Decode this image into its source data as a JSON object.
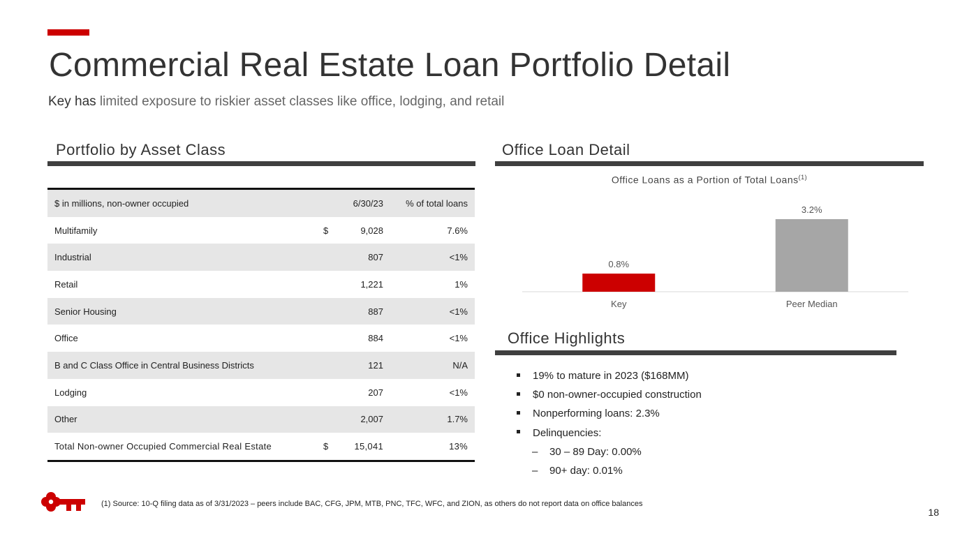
{
  "header": {
    "title": "Commercial Real Estate Loan Portfolio Detail",
    "subtitle_lead": "Key has",
    "subtitle_rest": " limited exposure to riskier asset classes like office, lodging, and retail",
    "accent_color": "#cc0000"
  },
  "portfolio": {
    "heading": "Portfolio by Asset Class",
    "columns": [
      "$ in millions, non-owner occupied",
      "6/30/23",
      "% of total loans"
    ],
    "rows": [
      {
        "label": "Multifamily",
        "dollar": "$",
        "value": "9,028",
        "pct": "7.6%"
      },
      {
        "label": "Industrial",
        "dollar": "",
        "value": "807",
        "pct": "<1%"
      },
      {
        "label": "Retail",
        "dollar": "",
        "value": "1,221",
        "pct": "1%"
      },
      {
        "label": "Senior Housing",
        "dollar": "",
        "value": "887",
        "pct": "<1%"
      },
      {
        "label": "Office",
        "dollar": "",
        "value": "884",
        "pct": "<1%"
      },
      {
        "label": "B and C Class Office in Central Business Districts",
        "dollar": "",
        "value": "121",
        "pct": "N/A"
      },
      {
        "label": "Lodging",
        "dollar": "",
        "value": "207",
        "pct": "<1%"
      },
      {
        "label": "Other",
        "dollar": "",
        "value": "2,007",
        "pct": "1.7%"
      }
    ],
    "total": {
      "label": "Total Non-owner Occupied Commercial Real Estate",
      "dollar": "$",
      "value": "15,041",
      "pct": "13%"
    }
  },
  "office_detail": {
    "heading": "Office Loan Detail",
    "chart_title": "Office Loans as a Portion of Total Loans",
    "chart_title_sup": "(1)"
  },
  "chart_data": {
    "type": "bar",
    "title": "Office Loans as a Portion of Total Loans(1)",
    "categories": [
      "Key",
      "Peer Median"
    ],
    "values": [
      0.8,
      3.2
    ],
    "value_labels": [
      "0.8%",
      "3.2%"
    ],
    "colors": [
      "#cc0000",
      "#a6a6a6"
    ],
    "ylim": [
      0,
      3.6
    ],
    "xlabel": "",
    "ylabel": "",
    "grid": false
  },
  "highlights": {
    "heading": "Office Highlights",
    "items": [
      {
        "text": "19% to mature in 2023 ($168MM)",
        "level": 1
      },
      {
        "text": "$0 non-owner-occupied construction",
        "level": 1
      },
      {
        "text": "Nonperforming loans: 2.3%",
        "level": 1
      },
      {
        "text": "Delinquencies:",
        "level": 1
      },
      {
        "text": "30 – 89 Day: 0.00%",
        "level": 2
      },
      {
        "text": "90+ day: 0.01%",
        "level": 2
      }
    ]
  },
  "footer": {
    "footnote": "(1) Source: 10-Q filing data as of 3/31/2023 – peers include BAC, CFG, JPM, MTB, PNC, TFC, WFC, and ZION, as others do not report data on office balances",
    "page_number": "18",
    "logo_icon": "key-logo-icon"
  }
}
